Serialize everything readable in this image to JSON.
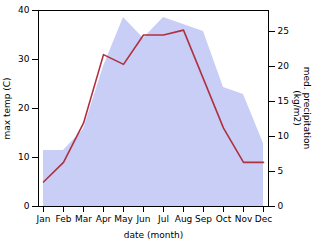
{
  "chart_data": {
    "type": "line",
    "categories": [
      "Jan",
      "Feb",
      "Mar",
      "Apr",
      "May",
      "Jun",
      "Jul",
      "Aug",
      "Sep",
      "Oct",
      "Nov",
      "Dec"
    ],
    "xlabel": "date (month)",
    "ylabel": "max temp (C)",
    "y2label": "med. precipitation\n(kg/m2)",
    "series": [
      {
        "type": "area",
        "axis": "y2",
        "color": "#c8cef5",
        "values": [
          8,
          8,
          11,
          20,
          27,
          24,
          27,
          26,
          25,
          17,
          16,
          9
        ]
      },
      {
        "type": "line",
        "color": "#b03040",
        "values": [
          5,
          9,
          17,
          31,
          29,
          35,
          35,
          36,
          26,
          16,
          9,
          9
        ]
      }
    ],
    "ylim": [
      0,
      40
    ],
    "yticks": [
      0,
      10,
      20,
      30,
      40
    ],
    "y2lim": [
      0,
      28
    ],
    "y2ticks": [
      0,
      5,
      10,
      15,
      20,
      25
    ],
    "grid": false
  }
}
